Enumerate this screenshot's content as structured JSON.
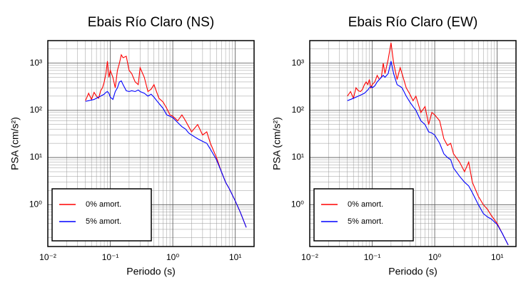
{
  "chart_data": [
    {
      "type": "line",
      "title": "Ebais Río Claro (NS)",
      "x_label": "Periodo (s)",
      "y_label": "PSA (cm/s²)",
      "x_scale": "log",
      "y_scale": "log",
      "grid": true,
      "legend": "lower left",
      "xlim": [
        0.01,
        20
      ],
      "ylim": [
        0.13,
        3000
      ],
      "xticks": [
        {
          "value": 0.01,
          "label": "10⁻²"
        },
        {
          "value": 0.1,
          "label": "10⁻¹"
        },
        {
          "value": 1,
          "label": "10⁰"
        },
        {
          "value": 10,
          "label": "10¹"
        }
      ],
      "yticks": [
        {
          "value": 1,
          "label": "10⁰"
        },
        {
          "value": 10,
          "label": "10¹"
        },
        {
          "value": 100,
          "label": "10²"
        },
        {
          "value": 1000,
          "label": "10³"
        }
      ],
      "xminorticks": [
        0.02,
        0.03,
        0.04,
        0.05,
        0.06,
        0.07,
        0.08,
        0.09,
        0.2,
        0.3,
        0.4,
        0.5,
        0.6,
        0.7,
        0.8,
        0.9,
        2,
        3,
        4,
        5,
        6,
        7,
        8,
        9,
        20
      ],
      "yminorticks": [
        0.2,
        0.3,
        0.4,
        0.5,
        0.6,
        0.7,
        0.8,
        0.9,
        2,
        3,
        4,
        5,
        6,
        7,
        8,
        9,
        20,
        30,
        40,
        50,
        60,
        70,
        80,
        90,
        200,
        300,
        400,
        500,
        600,
        700,
        800,
        900,
        2000,
        3000
      ],
      "x": [
        0.04,
        0.045,
        0.05,
        0.055,
        0.06,
        0.065,
        0.07,
        0.075,
        0.08,
        0.085,
        0.09,
        0.095,
        0.1,
        0.11,
        0.12,
        0.13,
        0.14,
        0.15,
        0.16,
        0.18,
        0.2,
        0.22,
        0.25,
        0.28,
        0.3,
        0.35,
        0.4,
        0.45,
        0.5,
        0.6,
        0.7,
        0.8,
        0.9,
        1.0,
        1.2,
        1.4,
        1.6,
        1.8,
        2.0,
        2.5,
        3,
        3.5,
        4,
        5,
        6,
        7,
        8,
        10,
        12,
        15
      ],
      "series": [
        {
          "name": "0% amort.",
          "color": "#ff0000",
          "values": [
            160,
            230,
            170,
            240,
            200,
            180,
            260,
            300,
            400,
            600,
            1100,
            500,
            700,
            500,
            300,
            700,
            1000,
            1500,
            1300,
            1400,
            700,
            600,
            400,
            350,
            800,
            500,
            250,
            280,
            350,
            180,
            150,
            110,
            80,
            75,
            60,
            80,
            60,
            45,
            35,
            50,
            30,
            35,
            20,
            10,
            5,
            3,
            2.2,
            1.2,
            0.7,
            0.33
          ]
        },
        {
          "name": "5% amort.",
          "color": "#0000ff",
          "values": [
            155,
            160,
            165,
            170,
            180,
            190,
            200,
            210,
            220,
            240,
            250,
            230,
            190,
            170,
            250,
            300,
            400,
            420,
            350,
            260,
            250,
            260,
            250,
            270,
            250,
            230,
            200,
            220,
            190,
            140,
            110,
            80,
            75,
            70,
            55,
            45,
            40,
            33,
            30,
            25,
            22,
            20,
            15,
            9,
            5,
            3,
            2.2,
            1.2,
            0.7,
            0.33
          ]
        }
      ]
    },
    {
      "type": "line",
      "title": "Ebais Río Claro (EW)",
      "x_label": "Periodo (s)",
      "y_label": "PSA (cm/s²)",
      "x_scale": "log",
      "y_scale": "log",
      "grid": true,
      "legend": "lower left",
      "xlim": [
        0.01,
        20
      ],
      "ylim": [
        0.13,
        3000
      ],
      "xticks": [
        {
          "value": 0.01,
          "label": "10⁻²"
        },
        {
          "value": 0.1,
          "label": "10⁻¹"
        },
        {
          "value": 1,
          "label": "10⁰"
        },
        {
          "value": 10,
          "label": "10¹"
        }
      ],
      "yticks": [
        {
          "value": 1,
          "label": "10⁰"
        },
        {
          "value": 10,
          "label": "10¹"
        },
        {
          "value": 100,
          "label": "10²"
        },
        {
          "value": 1000,
          "label": "10³"
        }
      ],
      "xminorticks": [
        0.02,
        0.03,
        0.04,
        0.05,
        0.06,
        0.07,
        0.08,
        0.09,
        0.2,
        0.3,
        0.4,
        0.5,
        0.6,
        0.7,
        0.8,
        0.9,
        2,
        3,
        4,
        5,
        6,
        7,
        8,
        9,
        20
      ],
      "yminorticks": [
        0.2,
        0.3,
        0.4,
        0.5,
        0.6,
        0.7,
        0.8,
        0.9,
        2,
        3,
        4,
        5,
        6,
        7,
        8,
        9,
        20,
        30,
        40,
        50,
        60,
        70,
        80,
        90,
        200,
        300,
        400,
        500,
        600,
        700,
        800,
        900,
        2000,
        3000
      ],
      "x": [
        0.04,
        0.045,
        0.05,
        0.055,
        0.06,
        0.065,
        0.07,
        0.075,
        0.08,
        0.085,
        0.09,
        0.095,
        0.1,
        0.11,
        0.12,
        0.13,
        0.14,
        0.15,
        0.16,
        0.18,
        0.2,
        0.22,
        0.25,
        0.28,
        0.3,
        0.35,
        0.4,
        0.45,
        0.5,
        0.6,
        0.7,
        0.8,
        0.9,
        1.0,
        1.2,
        1.4,
        1.6,
        1.8,
        2.0,
        2.5,
        3,
        3.5,
        4,
        5,
        6,
        7,
        8,
        10,
        12,
        15
      ],
      "series": [
        {
          "name": "0% amort.",
          "color": "#ff0000",
          "values": [
            200,
            250,
            180,
            300,
            260,
            250,
            280,
            350,
            400,
            350,
            450,
            300,
            350,
            400,
            550,
            450,
            500,
            1000,
            600,
            1200,
            2700,
            1000,
            450,
            800,
            600,
            300,
            220,
            160,
            200,
            90,
            120,
            50,
            90,
            80,
            60,
            25,
            18,
            20,
            12,
            8,
            5,
            8,
            3,
            1.5,
            1.0,
            0.8,
            0.6,
            0.4,
            0.25,
            0.14
          ]
        },
        {
          "name": "5% amort.",
          "color": "#0000ff",
          "values": [
            160,
            170,
            180,
            190,
            200,
            210,
            220,
            230,
            250,
            270,
            300,
            320,
            300,
            330,
            400,
            450,
            500,
            550,
            500,
            600,
            1100,
            600,
            350,
            320,
            300,
            200,
            150,
            120,
            100,
            60,
            50,
            35,
            33,
            30,
            20,
            12,
            10,
            9,
            6,
            4,
            3,
            2.5,
            1.8,
            1.0,
            0.65,
            0.55,
            0.5,
            0.38,
            0.25,
            0.14
          ]
        }
      ]
    }
  ]
}
